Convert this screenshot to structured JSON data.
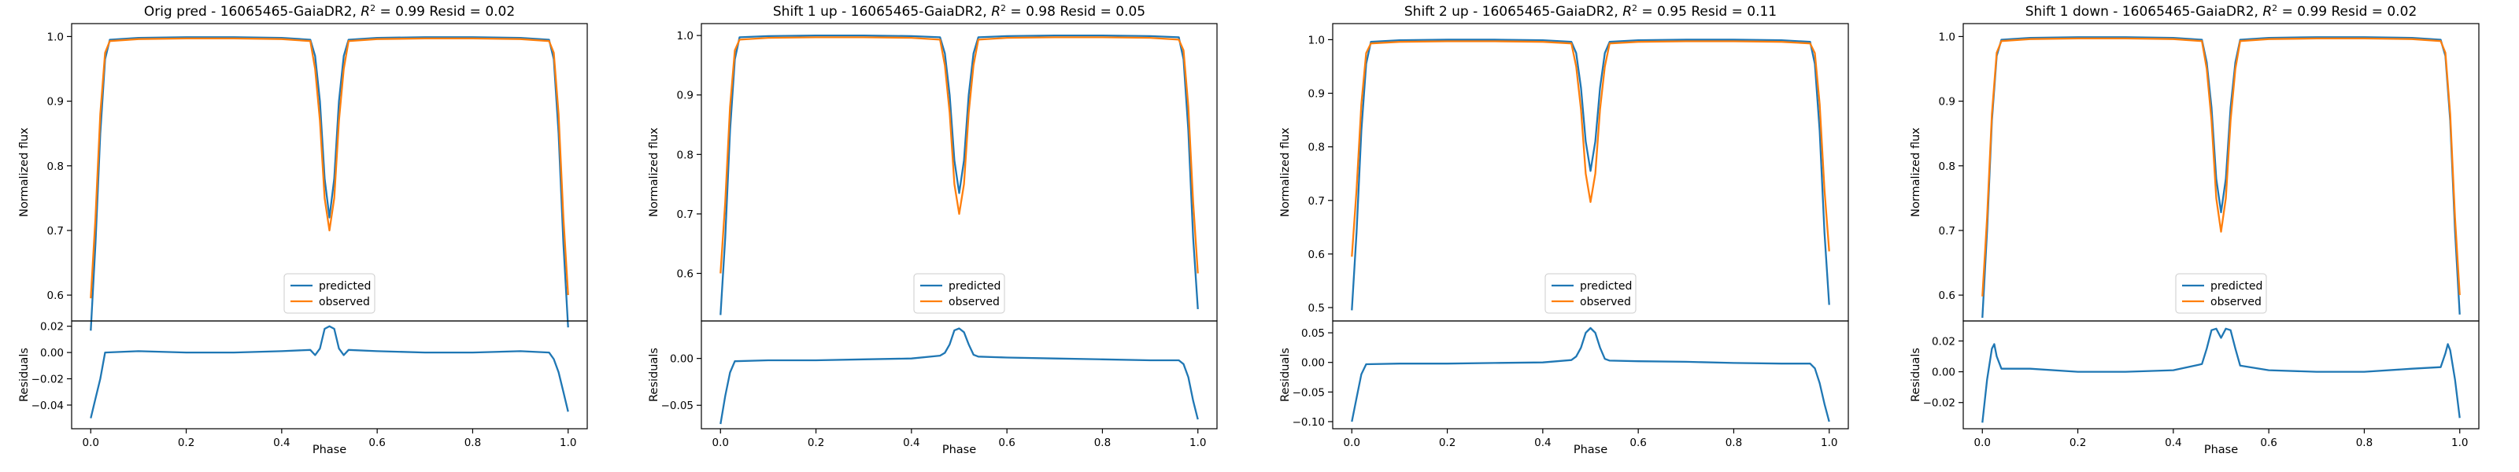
{
  "figure": {
    "panels": [
      {
        "title": "Orig pred - 16065465-GaiaDR2, $R^2 = 0.99$ Resid = 0.02"
      },
      {
        "title": "Shift 1 up - 16065465-GaiaDR2, $R^2 = 0.98$ Resid = 0.05"
      },
      {
        "title": "Shift 2 up - 16065465-GaiaDR2, $R^2 = 0.95$ Resid = 0.11"
      },
      {
        "title": "Shift 1 down - 16065465-GaiaDR2, $R^2 = 0.99$ Resid = 0.02"
      }
    ]
  },
  "chart_data": [
    {
      "type": "line",
      "title": "Orig pred - 16065465-GaiaDR2, $R^2 = 0.99$ Resid = 0.02",
      "xlabel": "Phase",
      "ylabel": "Normalized flux",
      "resid_ylabel": "Residuals",
      "xlim": [
        -0.04,
        1.04
      ],
      "ylim": [
        0.56,
        1.02
      ],
      "yticks": [
        0.6,
        0.7,
        0.8,
        0.9,
        1.0
      ],
      "resid_ylim": [
        -0.058,
        0.024
      ],
      "resid_yticks": [
        -0.04,
        -0.02,
        0.0,
        0.02
      ],
      "xticks": [
        0.0,
        0.2,
        0.4,
        0.6,
        0.8,
        1.0
      ],
      "legend": {
        "placement": "lower center",
        "entries": [
          "predicted",
          "observed"
        ]
      },
      "colors": {
        "predicted": "#1f77b4",
        "observed": "#ff7f0e"
      },
      "series": [
        {
          "name": "predicted",
          "x": [
            0.0,
            0.01,
            0.02,
            0.03,
            0.04,
            0.1,
            0.2,
            0.3,
            0.4,
            0.46,
            0.47,
            0.48,
            0.49,
            0.5,
            0.51,
            0.52,
            0.53,
            0.54,
            0.6,
            0.7,
            0.8,
            0.9,
            0.96,
            0.97,
            0.98,
            0.99,
            1.0
          ],
          "y": [
            0.545,
            0.68,
            0.85,
            0.965,
            0.995,
            0.998,
            0.999,
            0.999,
            0.998,
            0.995,
            0.97,
            0.9,
            0.78,
            0.72,
            0.78,
            0.9,
            0.97,
            0.995,
            0.998,
            0.999,
            0.999,
            0.998,
            0.995,
            0.965,
            0.85,
            0.68,
            0.55
          ]
        },
        {
          "name": "observed",
          "x": [
            0.0,
            0.01,
            0.02,
            0.03,
            0.04,
            0.1,
            0.2,
            0.3,
            0.4,
            0.46,
            0.47,
            0.48,
            0.49,
            0.5,
            0.51,
            0.52,
            0.53,
            0.54,
            0.6,
            0.7,
            0.8,
            0.9,
            0.96,
            0.97,
            0.98,
            0.99,
            1.0
          ],
          "y": [
            0.595,
            0.72,
            0.88,
            0.975,
            0.993,
            0.996,
            0.997,
            0.997,
            0.996,
            0.993,
            0.95,
            0.87,
            0.75,
            0.7,
            0.75,
            0.87,
            0.95,
            0.993,
            0.996,
            0.997,
            0.997,
            0.996,
            0.993,
            0.975,
            0.88,
            0.72,
            0.6
          ]
        }
      ],
      "residuals": {
        "name": "residuals",
        "x": [
          0.0,
          0.01,
          0.02,
          0.03,
          0.1,
          0.2,
          0.3,
          0.4,
          0.46,
          0.47,
          0.48,
          0.49,
          0.5,
          0.51,
          0.52,
          0.53,
          0.54,
          0.6,
          0.7,
          0.8,
          0.9,
          0.96,
          0.97,
          0.98,
          0.99,
          1.0
        ],
        "y": [
          -0.05,
          -0.035,
          -0.02,
          0.0,
          0.001,
          0.0,
          0.0,
          0.001,
          0.002,
          -0.002,
          0.003,
          0.018,
          0.02,
          0.018,
          0.003,
          -0.002,
          0.002,
          0.001,
          0.0,
          0.0,
          0.001,
          0.0,
          -0.005,
          -0.015,
          -0.03,
          -0.045
        ]
      }
    },
    {
      "type": "line",
      "title": "Shift 1 up - 16065465-GaiaDR2, $R^2 = 0.98$ Resid = 0.05",
      "xlabel": "Phase",
      "ylabel": "Normalized flux",
      "resid_ylabel": "Residuals",
      "xlim": [
        -0.04,
        1.04
      ],
      "ylim": [
        0.52,
        1.02
      ],
      "yticks": [
        0.6,
        0.7,
        0.8,
        0.9,
        1.0
      ],
      "resid_ylim": [
        -0.075,
        0.04
      ],
      "resid_yticks": [
        -0.05,
        0.0
      ],
      "xticks": [
        0.0,
        0.2,
        0.4,
        0.6,
        0.8,
        1.0
      ],
      "legend": {
        "placement": "lower center",
        "entries": [
          "predicted",
          "observed"
        ]
      },
      "colors": {
        "predicted": "#1f77b4",
        "observed": "#ff7f0e"
      },
      "series": [
        {
          "name": "predicted",
          "x": [
            0.0,
            0.01,
            0.02,
            0.03,
            0.04,
            0.1,
            0.2,
            0.3,
            0.4,
            0.46,
            0.47,
            0.48,
            0.49,
            0.5,
            0.51,
            0.52,
            0.53,
            0.54,
            0.6,
            0.7,
            0.8,
            0.9,
            0.96,
            0.97,
            0.98,
            0.99,
            1.0
          ],
          "y": [
            0.53,
            0.66,
            0.84,
            0.96,
            0.997,
            0.999,
            1.0,
            1.0,
            0.999,
            0.997,
            0.97,
            0.9,
            0.79,
            0.735,
            0.79,
            0.9,
            0.97,
            0.997,
            0.999,
            1.0,
            1.0,
            0.999,
            0.997,
            0.96,
            0.84,
            0.66,
            0.54
          ]
        },
        {
          "name": "observed",
          "x": [
            0.0,
            0.01,
            0.02,
            0.03,
            0.04,
            0.1,
            0.2,
            0.3,
            0.4,
            0.46,
            0.47,
            0.48,
            0.49,
            0.5,
            0.51,
            0.52,
            0.53,
            0.54,
            0.6,
            0.7,
            0.8,
            0.9,
            0.96,
            0.97,
            0.98,
            0.99,
            1.0
          ],
          "y": [
            0.6,
            0.72,
            0.88,
            0.975,
            0.993,
            0.996,
            0.997,
            0.997,
            0.996,
            0.993,
            0.95,
            0.87,
            0.75,
            0.7,
            0.75,
            0.87,
            0.95,
            0.993,
            0.996,
            0.997,
            0.997,
            0.996,
            0.993,
            0.975,
            0.88,
            0.72,
            0.6
          ]
        }
      ],
      "residuals": {
        "name": "residuals",
        "x": [
          0.0,
          0.01,
          0.02,
          0.03,
          0.1,
          0.2,
          0.3,
          0.4,
          0.46,
          0.47,
          0.48,
          0.49,
          0.5,
          0.51,
          0.52,
          0.53,
          0.54,
          0.6,
          0.7,
          0.8,
          0.9,
          0.96,
          0.97,
          0.98,
          0.99,
          1.0
        ],
        "y": [
          -0.07,
          -0.04,
          -0.015,
          -0.003,
          -0.002,
          -0.002,
          -0.001,
          0.0,
          0.003,
          0.006,
          0.015,
          0.03,
          0.032,
          0.028,
          0.015,
          0.004,
          0.002,
          0.001,
          0.0,
          -0.001,
          -0.002,
          -0.002,
          -0.006,
          -0.02,
          -0.045,
          -0.065
        ]
      }
    },
    {
      "type": "line",
      "title": "Shift 2 up - 16065465-GaiaDR2, $R^2 = 0.95$ Resid = 0.11",
      "xlabel": "Phase",
      "ylabel": "Normalized flux",
      "resid_ylabel": "Residuals",
      "xlim": [
        -0.04,
        1.04
      ],
      "ylim": [
        0.475,
        1.03
      ],
      "yticks": [
        0.5,
        0.6,
        0.7,
        0.8,
        0.9,
        1.0
      ],
      "resid_ylim": [
        -0.112,
        0.07
      ],
      "resid_yticks": [
        -0.1,
        -0.05,
        0.0,
        0.05
      ],
      "xticks": [
        0.0,
        0.2,
        0.4,
        0.6,
        0.8,
        1.0
      ],
      "legend": {
        "placement": "lower center",
        "entries": [
          "predicted",
          "observed"
        ]
      },
      "colors": {
        "predicted": "#1f77b4",
        "observed": "#ff7f0e"
      },
      "series": [
        {
          "name": "predicted",
          "x": [
            0.0,
            0.01,
            0.02,
            0.03,
            0.04,
            0.1,
            0.2,
            0.3,
            0.4,
            0.46,
            0.47,
            0.48,
            0.49,
            0.5,
            0.51,
            0.52,
            0.53,
            0.54,
            0.6,
            0.7,
            0.8,
            0.9,
            0.96,
            0.97,
            0.98,
            0.99,
            1.0
          ],
          "y": [
            0.495,
            0.64,
            0.83,
            0.955,
            0.996,
            0.999,
            1.0,
            1.0,
            0.999,
            0.996,
            0.975,
            0.91,
            0.81,
            0.755,
            0.81,
            0.91,
            0.975,
            0.996,
            0.999,
            1.0,
            1.0,
            0.999,
            0.996,
            0.955,
            0.83,
            0.64,
            0.505
          ]
        },
        {
          "name": "observed",
          "x": [
            0.0,
            0.01,
            0.02,
            0.03,
            0.04,
            0.1,
            0.2,
            0.3,
            0.4,
            0.46,
            0.47,
            0.48,
            0.49,
            0.5,
            0.51,
            0.52,
            0.53,
            0.54,
            0.6,
            0.7,
            0.8,
            0.9,
            0.96,
            0.97,
            0.98,
            0.99,
            1.0
          ],
          "y": [
            0.595,
            0.72,
            0.88,
            0.975,
            0.993,
            0.996,
            0.997,
            0.997,
            0.996,
            0.993,
            0.95,
            0.87,
            0.75,
            0.697,
            0.75,
            0.87,
            0.95,
            0.993,
            0.996,
            0.997,
            0.997,
            0.996,
            0.993,
            0.975,
            0.88,
            0.72,
            0.605
          ]
        }
      ],
      "residuals": {
        "name": "residuals",
        "x": [
          0.0,
          0.01,
          0.02,
          0.03,
          0.1,
          0.2,
          0.3,
          0.4,
          0.46,
          0.47,
          0.48,
          0.49,
          0.5,
          0.51,
          0.52,
          0.53,
          0.54,
          0.6,
          0.7,
          0.8,
          0.9,
          0.96,
          0.97,
          0.98,
          0.99,
          1.0
        ],
        "y": [
          -0.1,
          -0.06,
          -0.02,
          -0.003,
          -0.002,
          -0.002,
          -0.001,
          0.0,
          0.004,
          0.01,
          0.025,
          0.05,
          0.058,
          0.05,
          0.025,
          0.006,
          0.003,
          0.002,
          0.001,
          -0.001,
          -0.002,
          -0.002,
          -0.01,
          -0.035,
          -0.07,
          -0.1
        ]
      }
    },
    {
      "type": "line",
      "title": "Shift 1 down - 16065465-GaiaDR2, $R^2 = 0.99$ Resid = 0.02",
      "xlabel": "Phase",
      "ylabel": "Normalized flux",
      "resid_ylabel": "Residuals",
      "xlim": [
        -0.04,
        1.04
      ],
      "ylim": [
        0.56,
        1.02
      ],
      "yticks": [
        0.6,
        0.7,
        0.8,
        0.9,
        1.0
      ],
      "resid_ylim": [
        -0.037,
        0.033
      ],
      "resid_yticks": [
        -0.02,
        0.0,
        0.02
      ],
      "xticks": [
        0.0,
        0.2,
        0.4,
        0.6,
        0.8,
        1.0
      ],
      "legend": {
        "placement": "lower center",
        "entries": [
          "predicted",
          "observed"
        ]
      },
      "colors": {
        "predicted": "#1f77b4",
        "observed": "#ff7f0e"
      },
      "series": [
        {
          "name": "predicted",
          "x": [
            0.0,
            0.01,
            0.02,
            0.03,
            0.04,
            0.1,
            0.2,
            0.3,
            0.4,
            0.46,
            0.47,
            0.48,
            0.49,
            0.5,
            0.51,
            0.52,
            0.53,
            0.54,
            0.6,
            0.7,
            0.8,
            0.9,
            0.96,
            0.97,
            0.98,
            0.99,
            1.0
          ],
          "y": [
            0.565,
            0.7,
            0.87,
            0.97,
            0.995,
            0.998,
            0.999,
            0.999,
            0.998,
            0.995,
            0.96,
            0.89,
            0.78,
            0.728,
            0.78,
            0.89,
            0.96,
            0.995,
            0.998,
            0.999,
            0.999,
            0.998,
            0.995,
            0.97,
            0.87,
            0.7,
            0.57
          ]
        },
        {
          "name": "observed",
          "x": [
            0.0,
            0.01,
            0.02,
            0.03,
            0.04,
            0.1,
            0.2,
            0.3,
            0.4,
            0.46,
            0.47,
            0.48,
            0.49,
            0.5,
            0.51,
            0.52,
            0.53,
            0.54,
            0.6,
            0.7,
            0.8,
            0.9,
            0.96,
            0.97,
            0.98,
            0.99,
            1.0
          ],
          "y": [
            0.598,
            0.72,
            0.88,
            0.975,
            0.993,
            0.996,
            0.997,
            0.997,
            0.996,
            0.993,
            0.95,
            0.87,
            0.75,
            0.698,
            0.75,
            0.87,
            0.95,
            0.993,
            0.996,
            0.997,
            0.997,
            0.996,
            0.993,
            0.975,
            0.88,
            0.72,
            0.6
          ]
        }
      ],
      "residuals": {
        "name": "residuals",
        "x": [
          0.0,
          0.01,
          0.02,
          0.025,
          0.03,
          0.04,
          0.1,
          0.2,
          0.3,
          0.4,
          0.46,
          0.47,
          0.48,
          0.49,
          0.5,
          0.51,
          0.52,
          0.53,
          0.54,
          0.6,
          0.7,
          0.8,
          0.9,
          0.96,
          0.97,
          0.975,
          0.98,
          0.99,
          1.0
        ],
        "y": [
          -0.033,
          -0.005,
          0.015,
          0.018,
          0.01,
          0.002,
          0.002,
          0.0,
          0.0,
          0.001,
          0.005,
          0.015,
          0.027,
          0.028,
          0.022,
          0.028,
          0.027,
          0.015,
          0.004,
          0.001,
          0.0,
          0.0,
          0.002,
          0.003,
          0.012,
          0.018,
          0.014,
          -0.005,
          -0.03
        ]
      }
    }
  ]
}
